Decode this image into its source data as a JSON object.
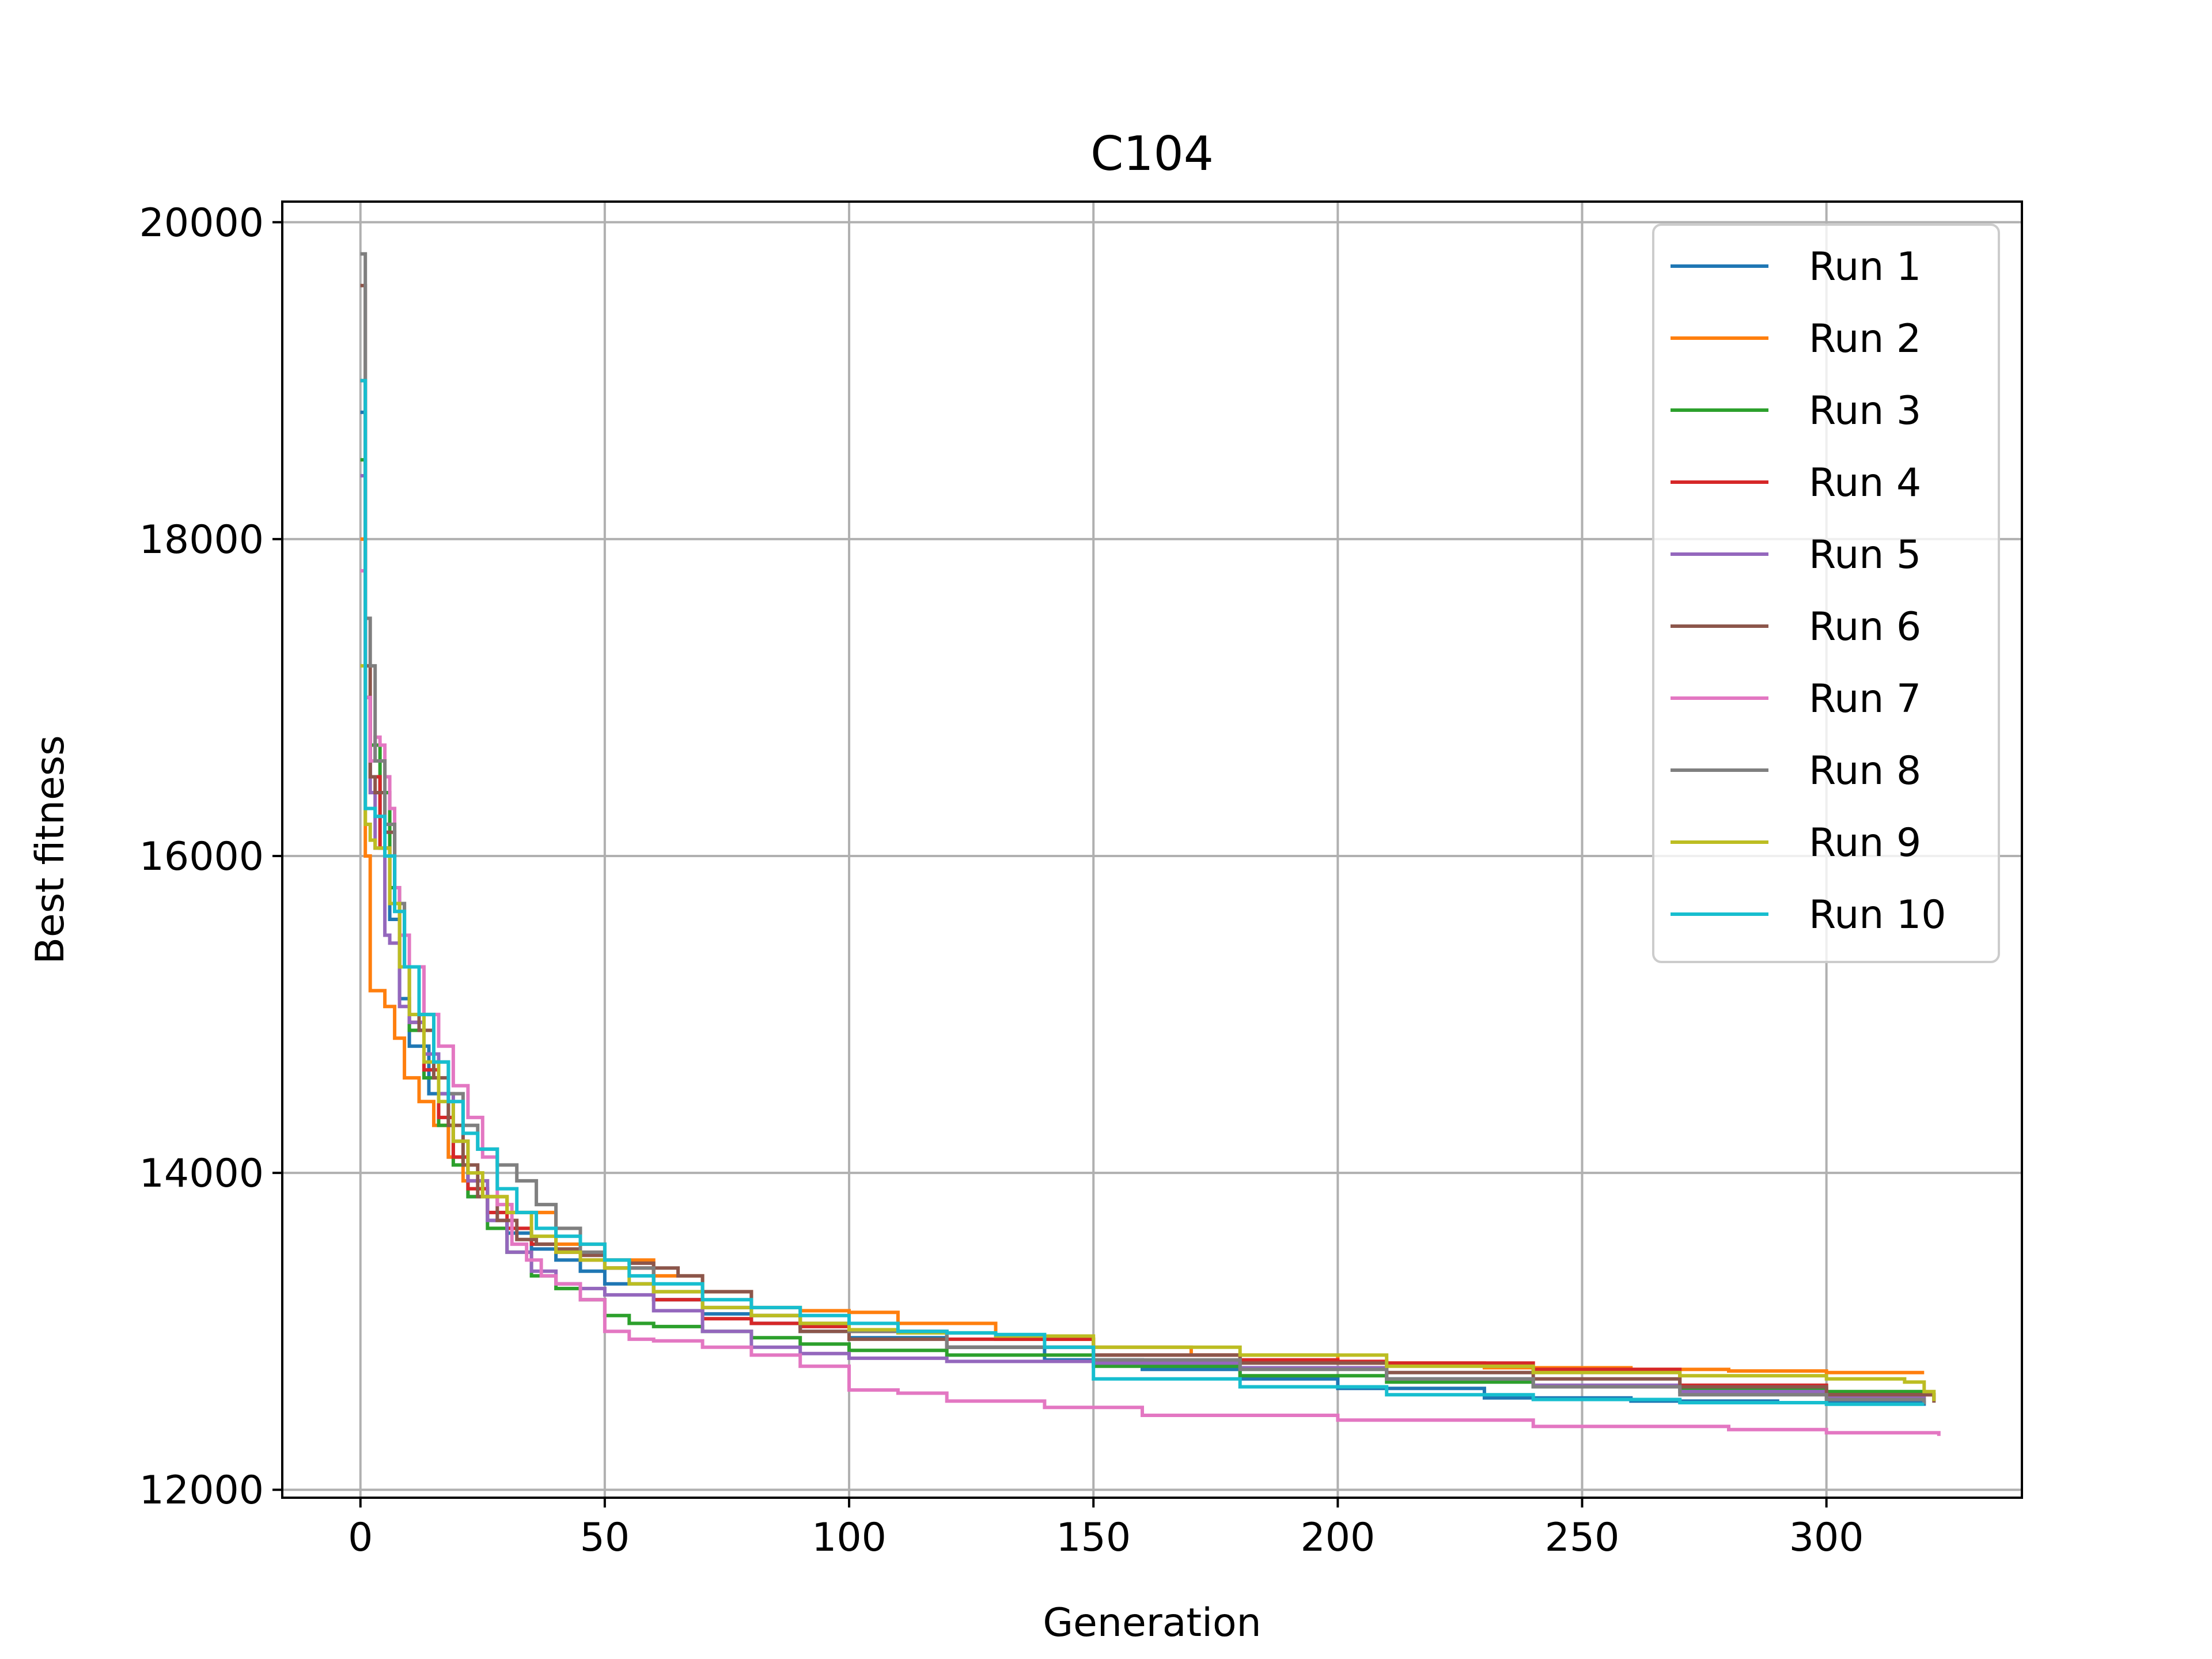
{
  "chart_data": {
    "type": "line",
    "title": "C104",
    "xlabel": "Generation",
    "ylabel": "Best fitness",
    "xlim": [
      -16,
      340
    ],
    "ylim": [
      11950,
      20130
    ],
    "xticks": [
      0,
      50,
      100,
      150,
      200,
      250,
      300
    ],
    "yticks": [
      12000,
      14000,
      16000,
      18000,
      20000
    ],
    "grid": true,
    "legend_position": "upper right",
    "series": [
      {
        "name": "Run 1",
        "color": "#1f77b4",
        "x": [
          0,
          1,
          2,
          4,
          6,
          8,
          10,
          14,
          18,
          22,
          26,
          30,
          35,
          40,
          45,
          50,
          60,
          70,
          80,
          90,
          100,
          120,
          140,
          160,
          180,
          200,
          230,
          260,
          290,
          320
        ],
        "y": [
          18800,
          17000,
          16500,
          16050,
          15600,
          15100,
          14800,
          14500,
          14100,
          13850,
          13700,
          13620,
          13520,
          13450,
          13380,
          13300,
          13200,
          13110,
          13050,
          13000,
          12960,
          12900,
          12820,
          12760,
          12700,
          12640,
          12580,
          12560,
          12550,
          12530
        ]
      },
      {
        "name": "Run 2",
        "color": "#ff7f0e",
        "x": [
          0,
          1,
          2,
          3,
          5,
          7,
          9,
          12,
          15,
          18,
          21,
          25,
          30,
          40,
          50,
          60,
          70,
          80,
          90,
          100,
          110,
          130,
          150,
          170,
          200,
          230,
          260,
          280,
          300,
          320
        ],
        "y": [
          18000,
          16000,
          15150,
          15150,
          15050,
          14850,
          14600,
          14450,
          14300,
          14100,
          13950,
          13850,
          13750,
          13550,
          13450,
          13350,
          13250,
          13150,
          13130,
          13120,
          13050,
          12950,
          12900,
          12850,
          12800,
          12770,
          12760,
          12750,
          12740,
          12740
        ]
      },
      {
        "name": "Run 3",
        "color": "#2ca02c",
        "x": [
          0,
          1,
          2,
          4,
          6,
          8,
          10,
          13,
          16,
          19,
          22,
          26,
          30,
          35,
          40,
          45,
          50,
          55,
          60,
          70,
          80,
          90,
          100,
          120,
          150,
          180,
          210,
          240,
          270,
          300,
          320
        ],
        "y": [
          18500,
          17000,
          16700,
          16400,
          15800,
          15300,
          14900,
          14600,
          14300,
          14050,
          13850,
          13650,
          13500,
          13350,
          13270,
          13200,
          13100,
          13050,
          13030,
          13000,
          12960,
          12920,
          12880,
          12850,
          12780,
          12720,
          12680,
          12650,
          12640,
          12620,
          12600
        ]
      },
      {
        "name": "Run 4",
        "color": "#d62728",
        "x": [
          0,
          1,
          2,
          4,
          6,
          8,
          10,
          13,
          16,
          19,
          22,
          26,
          30,
          35,
          40,
          45,
          50,
          60,
          70,
          80,
          90,
          100,
          120,
          150,
          180,
          200,
          210,
          240,
          270,
          300,
          322
        ],
        "y": [
          19000,
          17000,
          16500,
          16050,
          15700,
          15300,
          14950,
          14650,
          14350,
          14100,
          13900,
          13750,
          13650,
          13550,
          13500,
          13450,
          13400,
          13200,
          13080,
          13050,
          13030,
          13000,
          12950,
          12850,
          12820,
          12810,
          12800,
          12760,
          12660,
          12600,
          12560
        ]
      },
      {
        "name": "Run 5",
        "color": "#9467bd",
        "x": [
          0,
          1,
          2,
          3,
          4,
          5,
          6,
          8,
          10,
          13,
          16,
          19,
          22,
          26,
          30,
          35,
          40,
          45,
          50,
          60,
          70,
          80,
          90,
          100,
          120,
          150,
          180,
          210,
          240,
          270,
          300,
          320
        ],
        "y": [
          18400,
          17000,
          16400,
          16050,
          16050,
          15500,
          15450,
          15050,
          14950,
          14750,
          14500,
          14200,
          13950,
          13700,
          13500,
          13380,
          13300,
          13270,
          13230,
          13130,
          13000,
          12900,
          12860,
          12830,
          12810,
          12800,
          12770,
          12700,
          12660,
          12620,
          12580,
          12550
        ]
      },
      {
        "name": "Run 6",
        "color": "#8c564b",
        "x": [
          0,
          1,
          2,
          3,
          5,
          7,
          9,
          12,
          15,
          18,
          21,
          24,
          28,
          32,
          36,
          40,
          45,
          50,
          55,
          60,
          65,
          70,
          80,
          90,
          100,
          120,
          150,
          180,
          210,
          240,
          270,
          300,
          322
        ],
        "y": [
          19600,
          17200,
          16500,
          16400,
          16150,
          15700,
          15300,
          14900,
          14600,
          14300,
          14050,
          13850,
          13700,
          13580,
          13550,
          13520,
          13480,
          13450,
          13430,
          13400,
          13350,
          13250,
          13100,
          13000,
          12950,
          12900,
          12850,
          12800,
          12740,
          12700,
          12650,
          12600,
          12550
        ]
      },
      {
        "name": "Run 7",
        "color": "#e377c2",
        "x": [
          0,
          1,
          2,
          3,
          4,
          5,
          6,
          7,
          8,
          10,
          13,
          16,
          19,
          22,
          25,
          28,
          31,
          34,
          37,
          40,
          45,
          50,
          55,
          60,
          70,
          80,
          90,
          100,
          110,
          120,
          140,
          160,
          200,
          240,
          280,
          300,
          323
        ],
        "y": [
          17800,
          17000,
          16600,
          16750,
          16700,
          16500,
          16300,
          15800,
          15500,
          15300,
          15000,
          14800,
          14550,
          14350,
          14100,
          13800,
          13550,
          13450,
          13350,
          13300,
          13200,
          13000,
          12950,
          12940,
          12900,
          12850,
          12780,
          12630,
          12610,
          12560,
          12520,
          12470,
          12440,
          12400,
          12380,
          12360,
          12340
        ]
      },
      {
        "name": "Run 8",
        "color": "#7f7f7f",
        "x": [
          0,
          1,
          2,
          3,
          5,
          7,
          9,
          12,
          15,
          18,
          21,
          24,
          28,
          32,
          36,
          40,
          45,
          50,
          60,
          70,
          80,
          90,
          100,
          120,
          150,
          180,
          210,
          240,
          270,
          300,
          320
        ],
        "y": [
          19800,
          17500,
          17200,
          16600,
          16200,
          15700,
          15300,
          15000,
          14700,
          14500,
          14300,
          14150,
          14050,
          13950,
          13800,
          13650,
          13500,
          13400,
          13250,
          13150,
          13100,
          13050,
          13000,
          12900,
          12820,
          12760,
          12700,
          12650,
          12600,
          12570,
          12540
        ]
      },
      {
        "name": "Run 9",
        "color": "#bcbd22",
        "x": [
          0,
          1,
          2,
          3,
          4,
          6,
          8,
          10,
          13,
          16,
          19,
          22,
          25,
          30,
          35,
          40,
          45,
          50,
          55,
          60,
          70,
          80,
          90,
          100,
          110,
          130,
          150,
          180,
          210,
          240,
          270,
          300,
          316,
          320,
          322
        ],
        "y": [
          17200,
          16200,
          16100,
          16050,
          16050,
          15700,
          15300,
          15000,
          14700,
          14450,
          14200,
          14000,
          13850,
          13750,
          13600,
          13500,
          13450,
          13400,
          13300,
          13250,
          13150,
          13100,
          13050,
          13010,
          12990,
          12970,
          12900,
          12850,
          12780,
          12740,
          12720,
          12700,
          12680,
          12620,
          12560
        ]
      },
      {
        "name": "Run 10",
        "color": "#17becf",
        "x": [
          0,
          1,
          2,
          3,
          5,
          7,
          9,
          12,
          15,
          18,
          21,
          24,
          28,
          32,
          36,
          40,
          45,
          50,
          55,
          60,
          70,
          80,
          90,
          100,
          110,
          120,
          130,
          140,
          150,
          180,
          210,
          240,
          270,
          300,
          320
        ],
        "y": [
          19000,
          16300,
          16300,
          16250,
          16000,
          15650,
          15300,
          15000,
          14700,
          14450,
          14250,
          14150,
          13900,
          13750,
          13650,
          13600,
          13550,
          13450,
          13350,
          13300,
          13200,
          13150,
          13100,
          13050,
          13000,
          12990,
          12980,
          12900,
          12700,
          12650,
          12600,
          12570,
          12550,
          12540,
          12540
        ]
      }
    ]
  }
}
